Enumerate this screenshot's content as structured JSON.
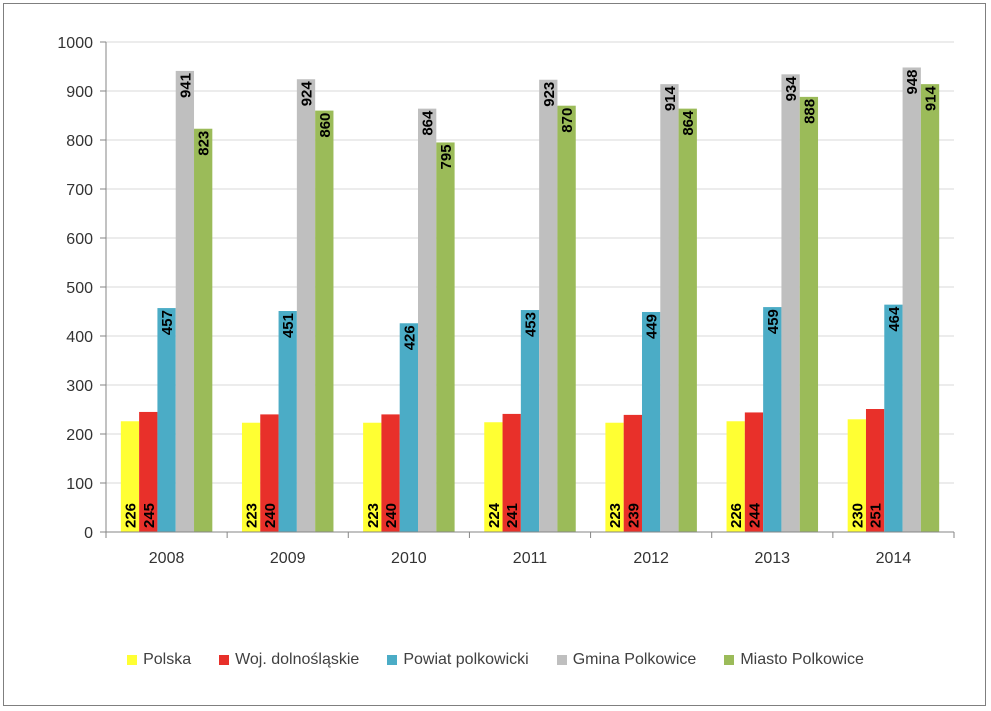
{
  "chart_data": {
    "type": "bar",
    "categories": [
      "2008",
      "2009",
      "2010",
      "2011",
      "2012",
      "2013",
      "2014"
    ],
    "series": [
      {
        "name": "Polska",
        "color": "#ffff33",
        "values": [
          226,
          223,
          223,
          224,
          223,
          226,
          230
        ]
      },
      {
        "name": "Woj. dolnośląskie",
        "color": "#e8302a",
        "values": [
          245,
          240,
          240,
          241,
          239,
          244,
          251
        ]
      },
      {
        "name": "Powiat polkowicki",
        "color": "#4bacc6",
        "values": [
          457,
          451,
          426,
          453,
          449,
          459,
          464
        ]
      },
      {
        "name": "Gmina Polkowice",
        "color": "#bfbfbf",
        "values": [
          941,
          924,
          864,
          923,
          914,
          934,
          948
        ]
      },
      {
        "name": "Miasto Polkowice",
        "color": "#9bbb59",
        "values": [
          823,
          860,
          795,
          870,
          864,
          888,
          914
        ]
      }
    ],
    "yticks": [
      "0",
      "100",
      "200",
      "300",
      "400",
      "500",
      "600",
      "700",
      "800",
      "900",
      "1000"
    ],
    "ylim": [
      0,
      1000
    ],
    "grid": true,
    "data_labels": "vertical, inside bars",
    "legend_position": "bottom"
  }
}
